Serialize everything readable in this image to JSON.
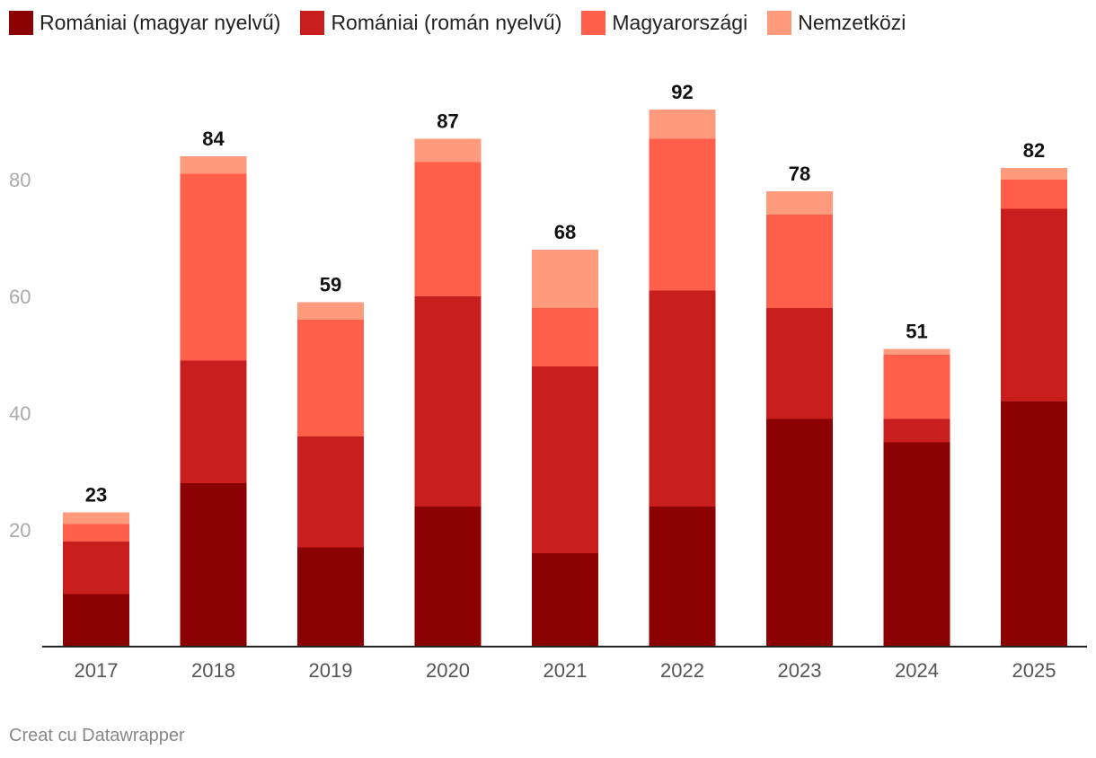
{
  "legend": {
    "items": [
      {
        "label": "Romániai (magyar nyelvű)",
        "color": "#8b0000"
      },
      {
        "label": "Romániai (román nyelvű)",
        "color": "#c81e1e"
      },
      {
        "label": "Magyarországi",
        "color": "#ff5f4b"
      },
      {
        "label": "Nemzetközi",
        "color": "#ff9a7d"
      }
    ]
  },
  "footer": {
    "credit": "Creat cu Datawrapper"
  },
  "chart_data": {
    "type": "bar",
    "stacked": true,
    "title": "",
    "xlabel": "",
    "ylabel": "",
    "ylim": [
      0,
      92
    ],
    "yticks": [
      20,
      40,
      60,
      80
    ],
    "grid": false,
    "legend_position": "top-left",
    "categories": [
      "2017",
      "2018",
      "2019",
      "2020",
      "2021",
      "2022",
      "2023",
      "2024",
      "2025"
    ],
    "series": [
      {
        "name": "Romániai (magyar nyelvű)",
        "color": "#8b0000",
        "values": [
          9,
          28,
          17,
          24,
          16,
          24,
          39,
          35,
          42
        ]
      },
      {
        "name": "Romániai (román nyelvű)",
        "color": "#c81e1e",
        "values": [
          9,
          21,
          19,
          36,
          32,
          37,
          19,
          4,
          33
        ]
      },
      {
        "name": "Magyarországi",
        "color": "#ff5f4b",
        "values": [
          3,
          32,
          20,
          23,
          10,
          26,
          16,
          11,
          5
        ]
      },
      {
        "name": "Nemzetközi",
        "color": "#ff9a7d",
        "values": [
          2,
          3,
          3,
          4,
          10,
          5,
          4,
          1,
          2
        ]
      }
    ],
    "totals": [
      23,
      84,
      59,
      87,
      68,
      92,
      78,
      51,
      82
    ]
  }
}
